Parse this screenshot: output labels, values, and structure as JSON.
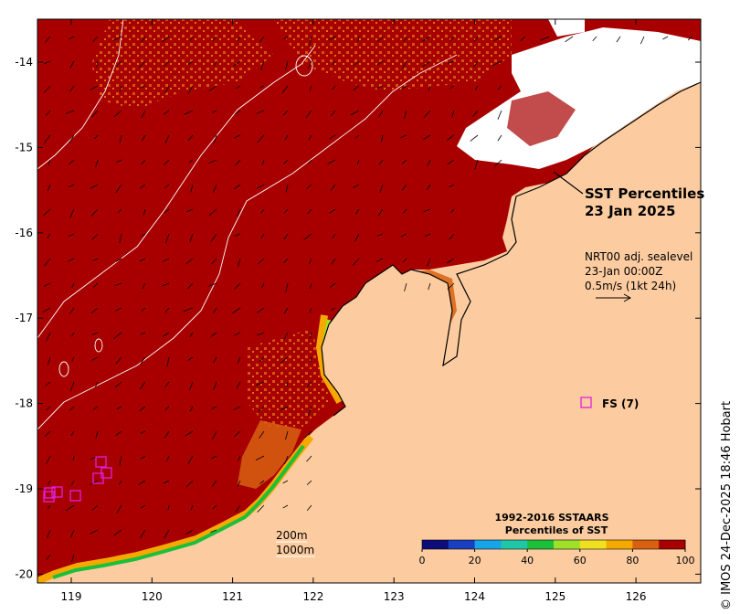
{
  "title": {
    "line1": "SST Percentiles",
    "line2": "23 Jan 2025"
  },
  "current_info": {
    "line1": "NRT00 adj. sealevel",
    "line2": "23-Jan 00:00Z",
    "line3": "0.5m/s (1kt 24h)"
  },
  "float_legend": {
    "label": "FS (7)",
    "color": "#e020e0"
  },
  "isobaths": [
    "200m",
    "1000m"
  ],
  "colorbar": {
    "title1": "1992-2016 SSTAARS",
    "title2": "Percentiles of SST",
    "ticks": [
      "0",
      "20",
      "40",
      "60",
      "80",
      "100"
    ],
    "colors": [
      "#0d0d7a",
      "#1a3fc0",
      "#17a4e8",
      "#1fc7a8",
      "#1cbf3a",
      "#9ee02a",
      "#f0e020",
      "#f5a800",
      "#d86010",
      "#a80000"
    ]
  },
  "x_axis": {
    "ticks": [
      "119",
      "120",
      "121",
      "122",
      "123",
      "124",
      "125",
      "126"
    ]
  },
  "y_axis": {
    "ticks": [
      "-14",
      "-15",
      "-16",
      "-17",
      "-18",
      "-19",
      "-20"
    ]
  },
  "credit": "© IMOS 24-Dec-2025 18:46 Hobart",
  "colors": {
    "land": "#fccca0",
    "ocean_high": "#a80000",
    "ocean_mid": "#d86010",
    "cloud": "#ffffff",
    "coast": "#000000"
  }
}
